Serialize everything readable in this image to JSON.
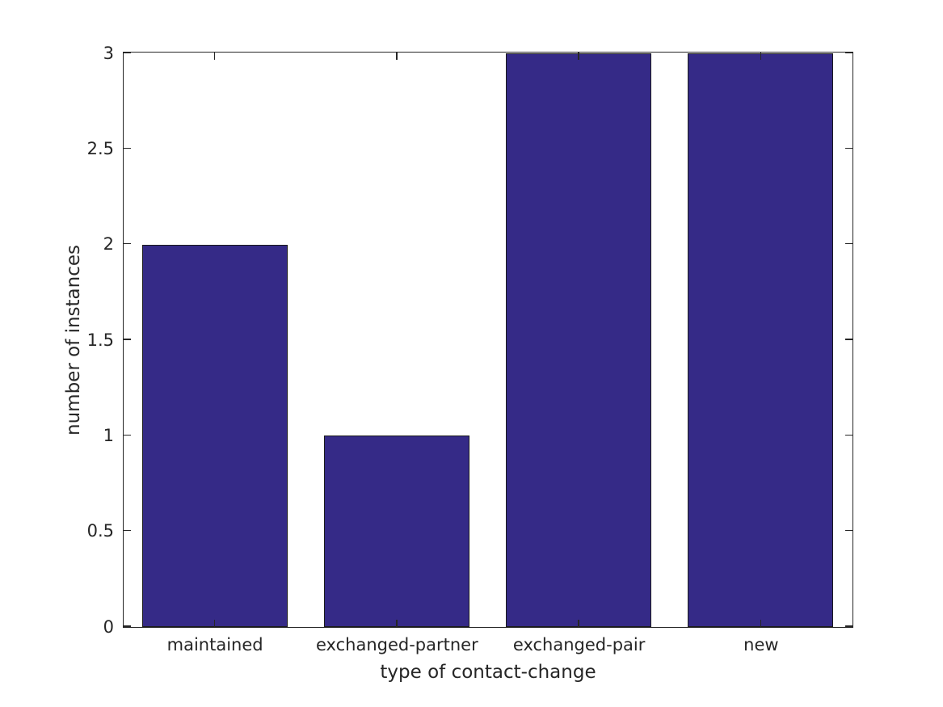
{
  "chart_data": {
    "type": "bar",
    "categories": [
      "maintained",
      "exchanged-partner",
      "exchanged-pair",
      "new"
    ],
    "values": [
      2,
      1,
      3,
      3
    ],
    "title": "",
    "xlabel": "type of contact-change",
    "ylabel": "number of instances",
    "ylim": [
      0,
      3
    ],
    "yticks": [
      0,
      0.5,
      1,
      1.5,
      2,
      2.5,
      3
    ],
    "ytick_labels": [
      "0",
      "0.5",
      "1",
      "1.5",
      "2",
      "2.5",
      "3"
    ],
    "xlim": [
      0.5,
      4.5
    ],
    "bar_width_fraction": 0.8,
    "grid": false,
    "legend": null,
    "colors": {
      "bar_fill": "#352a87",
      "bar_edge": "#1a1a1a",
      "axis": "#262626",
      "text": "#262626",
      "background": "#ffffff"
    }
  }
}
